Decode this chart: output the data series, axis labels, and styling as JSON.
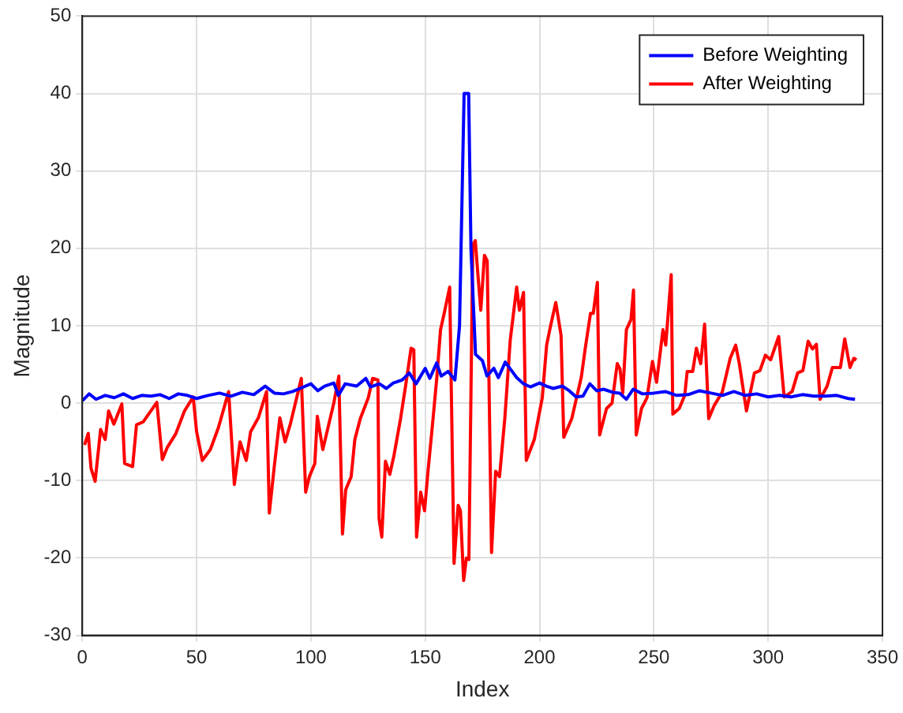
{
  "chart_data": {
    "type": "line",
    "xlabel": "Index",
    "ylabel": "Magnitude",
    "xlim": [
      0,
      350
    ],
    "xticks": [
      0,
      50,
      100,
      150,
      200,
      250,
      300,
      350
    ],
    "ylim": [
      -30,
      50
    ],
    "yticks": [
      -30,
      -20,
      -10,
      0,
      10,
      20,
      30,
      40,
      50
    ],
    "grid": true,
    "legend": "top right",
    "marker": "none",
    "line_style": "solid",
    "series": [
      {
        "name": "Before Weighting",
        "color": "#0000ff",
        "x": [
          0,
          3,
          6,
          10,
          14,
          18,
          22,
          26,
          30,
          34,
          38,
          42,
          46,
          50,
          55,
          60,
          65,
          70,
          75,
          80,
          84,
          88,
          92,
          96,
          100,
          103,
          106,
          110,
          112,
          115,
          120,
          124,
          126,
          130,
          133,
          136,
          140,
          143,
          146,
          150,
          152,
          155,
          157,
          160,
          163,
          165,
          167,
          169,
          170,
          172,
          175,
          177,
          180,
          182,
          185,
          188,
          190,
          193,
          196,
          200,
          203,
          206,
          210,
          213,
          216,
          219,
          222,
          225,
          228,
          232,
          235,
          238,
          241,
          245,
          250,
          255,
          260,
          265,
          270,
          275,
          280,
          285,
          290,
          295,
          300,
          305,
          310,
          315,
          320,
          325,
          330,
          335,
          338
        ],
        "values": [
          0.3,
          1.2,
          0.5,
          1,
          0.7,
          1.2,
          0.6,
          1,
          0.9,
          1.1,
          0.6,
          1.2,
          1,
          0.6,
          1,
          1.3,
          0.9,
          1.4,
          1.1,
          2.2,
          1.3,
          1.2,
          1.5,
          2,
          2.5,
          1.6,
          2.2,
          2.6,
          1,
          2.5,
          2.2,
          3.2,
          2.1,
          2.5,
          1.9,
          2.6,
          3,
          3.9,
          2.5,
          4.5,
          3.2,
          5.2,
          3.5,
          4.1,
          3,
          10,
          40,
          40,
          20,
          6.3,
          5.5,
          3.5,
          4.5,
          3.3,
          5.3,
          4.1,
          3.3,
          2.5,
          2.1,
          2.6,
          2.2,
          1.9,
          2.2,
          1.6,
          0.8,
          0.9,
          2.5,
          1.6,
          1.8,
          1.4,
          1.3,
          0.5,
          1.8,
          1.2,
          1.3,
          1.5,
          1,
          1.1,
          1.6,
          1.3,
          1,
          1.5,
          1,
          1.2,
          0.8,
          1,
          0.8,
          1.1,
          0.9,
          0.9,
          1,
          0.6,
          0.5
        ]
      },
      {
        "name": "After Weighting",
        "color": "#ff0000",
        "x": [
          1,
          2.6,
          3.8,
          5.6,
          8,
          10,
          11.5,
          13.8,
          17.3,
          18.5,
          22,
          23.7,
          26.7,
          32.6,
          35,
          37.2,
          40.8,
          44.7,
          48.5,
          50,
          52.5,
          56,
          59.5,
          64,
          66.5,
          69,
          71.7,
          73.6,
          77,
          80.6,
          81.8,
          84,
          86.4,
          88.7,
          91,
          95.8,
          97.7,
          99.3,
          101.7,
          102.8,
          105.2,
          110,
          112.2,
          113.8,
          115.2,
          117.6,
          119.2,
          121.6,
          125.1,
          127,
          129.3,
          129.8,
          131,
          132.6,
          134.5,
          136.3,
          139.2,
          141.5,
          143.8,
          145,
          146.2,
          148,
          149.7,
          151.3,
          153.2,
          155.1,
          156.7,
          158.3,
          160.7,
          162.6,
          164.4,
          165.4,
          166.8,
          168,
          169.1,
          170.8,
          171.9,
          173.1,
          174.3,
          175.9,
          177.1,
          179,
          180.8,
          182.5,
          184.8,
          187.2,
          190,
          191.2,
          193,
          194.2,
          197.7,
          201.2,
          203.1,
          204.7,
          207.1,
          209.4,
          210.6,
          214.1,
          218.3,
          220,
          222.3,
          223.5,
          225.3,
          226.3,
          229.3,
          231.7,
          234,
          235.2,
          236.4,
          238,
          240,
          241.1,
          242.3,
          244.6,
          247,
          249.4,
          251.2,
          254,
          255.2,
          257.6,
          258.3,
          261.1,
          263.5,
          264.6,
          267,
          268.6,
          270.5,
          272.2,
          274,
          276.4,
          279.9,
          283.4,
          285.8,
          287.4,
          290.5,
          294,
          296.4,
          298.8,
          301.1,
          304.6,
          307,
          310.5,
          312.9,
          315.2,
          317.5,
          319.4,
          321.1,
          322.7,
          325.8,
          328.1,
          331.6,
          333.5,
          335.8,
          337.5,
          338.6
        ],
        "values": [
          -5.4,
          -3.9,
          -8.4,
          -10.1,
          -3.4,
          -4.7,
          -1,
          -2.7,
          -0.1,
          -7.8,
          -8.2,
          -2.8,
          -2.4,
          0.1,
          -7.3,
          -5.7,
          -4,
          -1,
          0.8,
          -3.7,
          -7.4,
          -6,
          -3.2,
          1.5,
          -10.5,
          -5,
          -7.4,
          -3.7,
          -1.9,
          1.5,
          -14.2,
          -8.1,
          -1.9,
          -5,
          -2.7,
          3.2,
          -11.5,
          -9.5,
          -7.8,
          -1.7,
          -6,
          0,
          3.5,
          -16.9,
          -11.2,
          -9.5,
          -4.7,
          -2,
          0.7,
          3.2,
          3,
          -14.9,
          -17.3,
          -7.5,
          -9.2,
          -6.8,
          -2,
          2.4,
          7.1,
          6.9,
          -17.3,
          -11.5,
          -13.9,
          -8.5,
          -2.7,
          3.4,
          9.5,
          11.6,
          15,
          -20.7,
          -13.2,
          -13.9,
          -22.9,
          -20,
          -20.2,
          20.4,
          21,
          16.4,
          12,
          19.1,
          18.4,
          -19.3,
          -8.8,
          -9.5,
          -2,
          8.2,
          15,
          12,
          14.3,
          -7.4,
          -4.7,
          0.7,
          7.5,
          9.8,
          13,
          8.8,
          -4.4,
          -2,
          3.4,
          7.1,
          11.6,
          11.6,
          15.6,
          -4.1,
          -0.7,
          0,
          5.1,
          4.4,
          1.3,
          9.5,
          10.8,
          14.6,
          -4.1,
          -0.7,
          0.7,
          5.4,
          2.7,
          9.5,
          7.5,
          16.6,
          -1.4,
          -0.7,
          1,
          4.1,
          4.1,
          7.1,
          5.1,
          10.2,
          -2,
          -0.3,
          1.4,
          5.8,
          7.5,
          5.1,
          -1,
          3.9,
          4.2,
          6.2,
          5.6,
          8.6,
          0.8,
          1.5,
          3.9,
          4.2,
          8,
          7,
          7.6,
          0.5,
          2.2,
          4.6,
          4.6,
          8.3,
          4.6,
          5.8,
          5.6
        ]
      }
    ]
  }
}
